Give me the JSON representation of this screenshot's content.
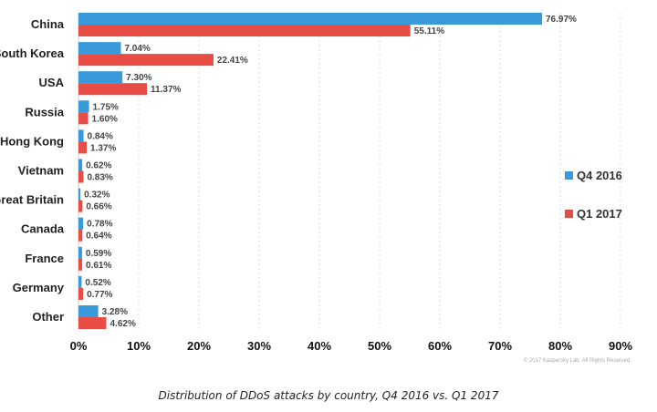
{
  "chart_data": {
    "type": "bar",
    "orientation": "horizontal",
    "title": "Distribution of DDoS attacks by country, Q4 2016 vs. Q1 2017",
    "xlabel": "",
    "ylabel": "",
    "xlim": [
      0,
      90
    ],
    "x_ticks": [
      "0%",
      "10%",
      "20%",
      "30%",
      "40%",
      "50%",
      "60%",
      "70%",
      "80%",
      "90%"
    ],
    "x_tick_values": [
      0,
      10,
      20,
      30,
      40,
      50,
      60,
      70,
      80,
      90
    ],
    "grid": true,
    "legend_position": "right",
    "categories": [
      "China",
      "South Korea",
      "USA",
      "Russia",
      "Hong Kong",
      "Vietnam",
      "Great Britain",
      "Canada",
      "France",
      "Germany",
      "Other"
    ],
    "series": [
      {
        "name": "Q4 2016",
        "color": "#3a9ad9",
        "values": [
          76.97,
          7.04,
          7.3,
          1.75,
          0.84,
          0.62,
          0.32,
          0.78,
          0.59,
          0.52,
          3.28
        ],
        "labels": [
          "76.97%",
          "7.04%",
          "7.30%",
          "1.75%",
          "0.84%",
          "0.62%",
          "0.32%",
          "0.78%",
          "0.59%",
          "0.52%",
          "3.28%"
        ]
      },
      {
        "name": "Q1 2017",
        "color": "#e74c45",
        "values": [
          55.11,
          22.41,
          11.37,
          1.6,
          1.37,
          0.83,
          0.66,
          0.64,
          0.61,
          0.77,
          4.62
        ],
        "labels": [
          "55.11%",
          "22.41%",
          "11.37%",
          "1.60%",
          "1.37%",
          "0.83%",
          "0.66%",
          "0.64%",
          "0.61%",
          "0.77%",
          "4.62%"
        ]
      }
    ]
  },
  "copyright": "© 2017 Kaspersky Lab. All Rights Reserved.",
  "caption": "Distribution of DDoS attacks by country, Q4 2016 vs. Q1 2017"
}
